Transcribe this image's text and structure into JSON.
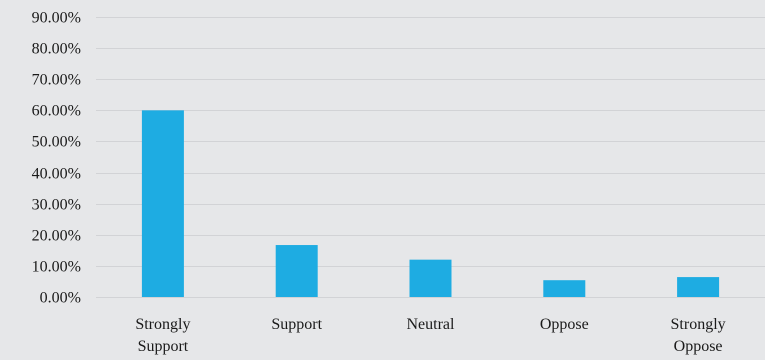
{
  "chart_data": {
    "type": "bar",
    "title": "",
    "xlabel": "",
    "ylabel": "",
    "categories": [
      [
        "Strongly",
        "Support"
      ],
      [
        "Support"
      ],
      [
        "Neutral"
      ],
      [
        "Oppose"
      ],
      [
        "Strongly",
        "Oppose"
      ]
    ],
    "values": [
      0.6,
      0.167,
      0.12,
      0.054,
      0.064
    ],
    "ylim": [
      0,
      0.9
    ],
    "yticks": [
      0.0,
      0.1,
      0.2,
      0.3,
      0.4,
      0.5,
      0.6,
      0.7,
      0.8,
      0.9
    ],
    "ytick_labels": [
      "0.00%",
      "10.00%",
      "20.00%",
      "30.00%",
      "40.00%",
      "50.00%",
      "60.00%",
      "70.00%",
      "80.00%",
      "90.00%"
    ],
    "grid": true,
    "legend": "none",
    "colors": {
      "bar": "#1eace2",
      "background": "#e6e7e9",
      "grid": "#d2d3d6"
    }
  }
}
